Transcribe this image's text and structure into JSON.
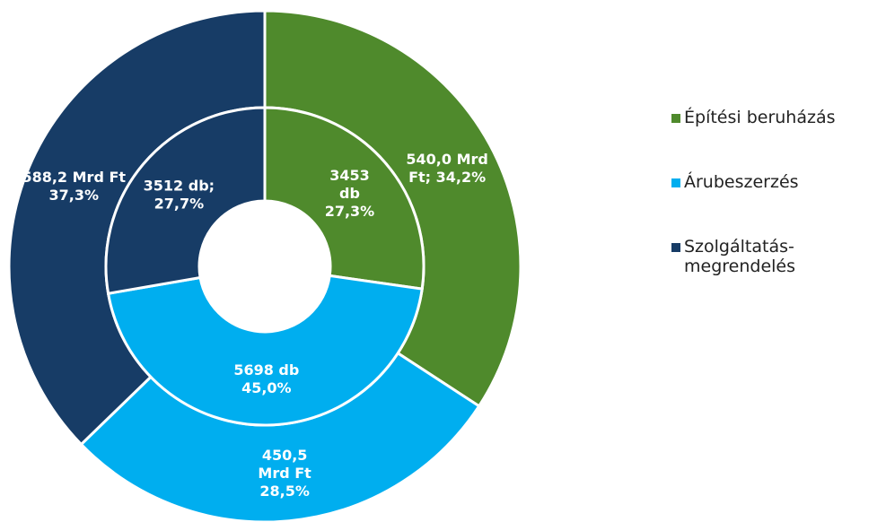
{
  "chart_data": {
    "type": "doughnut",
    "categories": [
      "Építési beruházás",
      "Árubeszerzés",
      "Szolgáltatás-megrendelés"
    ],
    "colors": [
      "#4f8a2c",
      "#00aeef",
      "#173c66"
    ],
    "series": [
      {
        "values": [
          540.0,
          450.5,
          588.2
        ],
        "value_labels": [
          [
            "540,0 Mrd",
            "Ft; 34,2%"
          ],
          [
            "450,5",
            "Mrd Ft",
            "28,5%"
          ],
          [
            "588,2 Mrd Ft",
            "37,3%"
          ]
        ]
      },
      {
        "values": [
          3453,
          5698,
          3512
        ],
        "value_labels": [
          [
            "3453",
            "db",
            "27,3%"
          ],
          [
            "5698 db",
            "45,0%"
          ],
          [
            "3512 db;",
            "27,7%"
          ]
        ]
      }
    ],
    "legend": "right"
  }
}
